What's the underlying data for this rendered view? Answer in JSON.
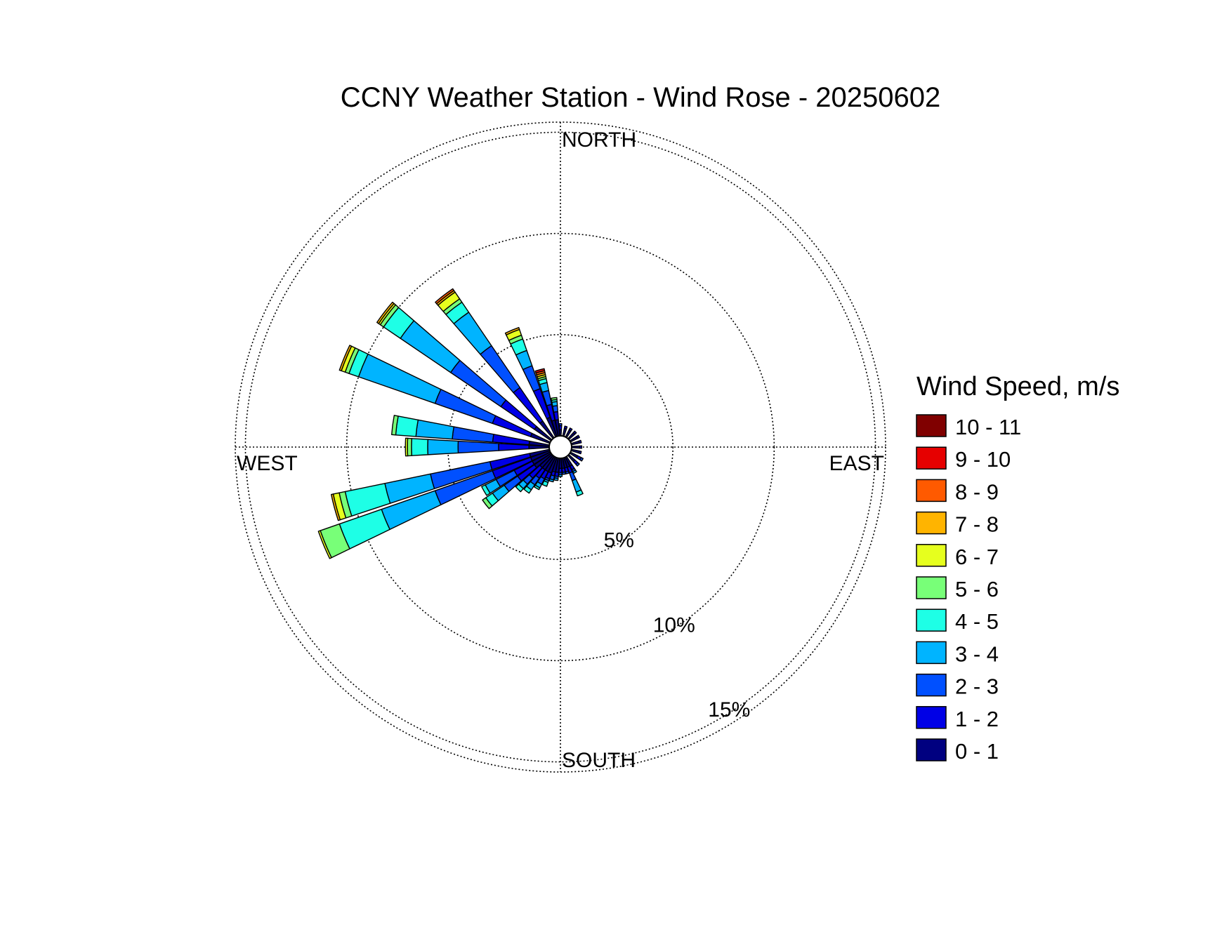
{
  "chart_data": {
    "type": "wind-rose",
    "title": "CCNY Weather Station - Wind Rose - 20250602",
    "direction_labels": {
      "north": "NORTH",
      "south": "SOUTH",
      "east": "EAST",
      "west": "WEST"
    },
    "rings": [
      {
        "value": 5,
        "label": "5%"
      },
      {
        "value": 10,
        "label": "10%"
      },
      {
        "value": 15,
        "label": "15%"
      }
    ],
    "rmax": 15.5,
    "grid": true,
    "legend": {
      "title": "Wind Speed, m/s",
      "placement": "right",
      "bins": [
        {
          "label": "10 - 11",
          "color": "#800000"
        },
        {
          "label": "9 - 10",
          "color": "#e60000"
        },
        {
          "label": "8 - 9",
          "color": "#ff5a00"
        },
        {
          "label": "7 - 8",
          "color": "#ffb400"
        },
        {
          "label": "6 - 7",
          "color": "#e6ff1e"
        },
        {
          "label": "5 - 6",
          "color": "#78ff78"
        },
        {
          "label": "4 - 5",
          "color": "#1effe6"
        },
        {
          "label": "3 - 4",
          "color": "#00b4ff"
        },
        {
          "label": "2 - 3",
          "color": "#0050ff"
        },
        {
          "label": "1 - 2",
          "color": "#0000e6"
        },
        {
          "label": "0 - 1",
          "color": "#000080"
        }
      ]
    },
    "bin_order": "0-1, 1-2, 2-3, 3-4, 4-5, 5-6, 6-7, 7-8, 8-9, 9-10, 10-11",
    "series": [
      {
        "direction": 270,
        "values": [
          1.0,
          1.5,
          2.0,
          1.5,
          0.8,
          0.2,
          0.1,
          0,
          0,
          0,
          0
        ]
      },
      {
        "direction": 277.5,
        "values": [
          1.0,
          1.8,
          2.0,
          1.8,
          1.0,
          0.2,
          0,
          0,
          0,
          0,
          0
        ]
      },
      {
        "direction": 255,
        "values": [
          1.0,
          2.0,
          3.0,
          2.3,
          2.0,
          0.3,
          0.3,
          0.1,
          0,
          0,
          0
        ]
      },
      {
        "direction": 247.5,
        "values": [
          1.0,
          2.0,
          3.0,
          2.8,
          2.2,
          1.0,
          0.1,
          0,
          0,
          0,
          0
        ]
      },
      {
        "direction": 292.5,
        "values": [
          1.0,
          2.0,
          3.0,
          4.0,
          0.5,
          0.2,
          0.2,
          0.1,
          0,
          0,
          0
        ]
      },
      {
        "direction": 307.5,
        "values": [
          1.0,
          2.0,
          3.0,
          3.0,
          1.0,
          0.2,
          0.1,
          0.1,
          0,
          0,
          0
        ]
      },
      {
        "direction": 322.5,
        "values": [
          1.0,
          2.0,
          2.5,
          2.0,
          0.6,
          0.2,
          0.4,
          0.1,
          0.1,
          0,
          0
        ]
      },
      {
        "direction": 337.5,
        "values": [
          1.0,
          1.5,
          1.2,
          0.8,
          0.6,
          0.2,
          0.3,
          0.1,
          0,
          0,
          0
        ]
      },
      {
        "direction": 345,
        "values": [
          0.8,
          0.8,
          0.7,
          0.4,
          0.2,
          0.1,
          0.1,
          0.1,
          0.1,
          0.1,
          0
        ]
      },
      {
        "direction": 352.5,
        "values": [
          0.8,
          0.4,
          0.3,
          0.2,
          0.1,
          0.1,
          0,
          0,
          0,
          0,
          0
        ]
      },
      {
        "direction": 0,
        "values": [
          0.3,
          0.2,
          0.1,
          0,
          0,
          0,
          0,
          0,
          0,
          0,
          0
        ]
      },
      {
        "direction": 240,
        "values": [
          1.0,
          1.0,
          1.0,
          0.6,
          0.2,
          0,
          0,
          0,
          0,
          0,
          0
        ]
      },
      {
        "direction": 232.5,
        "values": [
          1.0,
          1.0,
          0.8,
          0.7,
          0.4,
          0.2,
          0,
          0,
          0,
          0,
          0
        ]
      },
      {
        "direction": 225,
        "values": [
          0.8,
          0.7,
          0.4,
          0.3,
          0.2,
          0,
          0,
          0,
          0,
          0,
          0
        ]
      },
      {
        "direction": 217.5,
        "values": [
          0.8,
          0.5,
          0.4,
          0.3,
          0.2,
          0,
          0,
          0,
          0,
          0,
          0
        ]
      },
      {
        "direction": 210,
        "values": [
          0.8,
          0.4,
          0.3,
          0.2,
          0.1,
          0,
          0,
          0,
          0,
          0,
          0
        ]
      },
      {
        "direction": 202.5,
        "values": [
          0.8,
          0.3,
          0.1,
          0.1,
          0.2,
          0,
          0,
          0,
          0,
          0,
          0
        ]
      },
      {
        "direction": 195,
        "values": [
          0.7,
          0.2,
          0.2,
          0.1,
          0,
          0,
          0,
          0,
          0,
          0,
          0
        ]
      },
      {
        "direction": 187.5,
        "values": [
          0.7,
          0.2,
          0.1,
          0.1,
          0,
          0,
          0,
          0,
          0,
          0,
          0
        ]
      },
      {
        "direction": 180,
        "values": [
          0.5,
          0.2,
          0.1,
          0.1,
          0,
          0,
          0,
          0,
          0,
          0,
          0
        ]
      },
      {
        "direction": 172.5,
        "values": [
          0.5,
          0.2,
          0.1,
          0,
          0,
          0,
          0,
          0,
          0,
          0,
          0
        ]
      },
      {
        "direction": 165,
        "values": [
          0.5,
          0.2,
          0.1,
          0,
          0,
          0,
          0,
          0,
          0,
          0,
          0
        ]
      },
      {
        "direction": 157.5,
        "values": [
          0.5,
          0.3,
          0.4,
          0.6,
          0.2,
          0,
          0,
          0,
          0,
          0,
          0
        ]
      },
      {
        "direction": 150,
        "values": [
          0.5,
          0.2,
          0.1,
          0.1,
          0,
          0,
          0,
          0,
          0,
          0,
          0
        ]
      },
      {
        "direction": 135,
        "values": [
          0.4,
          0.2,
          0.1,
          0,
          0,
          0,
          0,
          0,
          0,
          0,
          0
        ]
      },
      {
        "direction": 120,
        "values": [
          0.4,
          0.2,
          0.1,
          0,
          0,
          0,
          0,
          0,
          0,
          0,
          0
        ]
      },
      {
        "direction": 105,
        "values": [
          0.4,
          0.1,
          0,
          0,
          0,
          0,
          0,
          0,
          0,
          0,
          0
        ]
      },
      {
        "direction": 90,
        "values": [
          0.4,
          0.1,
          0,
          0,
          0,
          0,
          0,
          0,
          0,
          0,
          0
        ]
      },
      {
        "direction": 75,
        "values": [
          0.4,
          0.1,
          0,
          0,
          0,
          0,
          0,
          0,
          0,
          0,
          0
        ]
      },
      {
        "direction": 60,
        "values": [
          0.4,
          0.1,
          0,
          0,
          0,
          0,
          0,
          0,
          0,
          0,
          0
        ]
      },
      {
        "direction": 45,
        "values": [
          0.4,
          0.1,
          0,
          0,
          0,
          0,
          0,
          0,
          0,
          0,
          0
        ]
      },
      {
        "direction": 30,
        "values": [
          0.4,
          0.1,
          0,
          0,
          0,
          0,
          0,
          0,
          0,
          0,
          0
        ]
      },
      {
        "direction": 15,
        "values": [
          0.4,
          0.1,
          0,
          0,
          0,
          0,
          0,
          0,
          0,
          0,
          0
        ]
      }
    ]
  }
}
